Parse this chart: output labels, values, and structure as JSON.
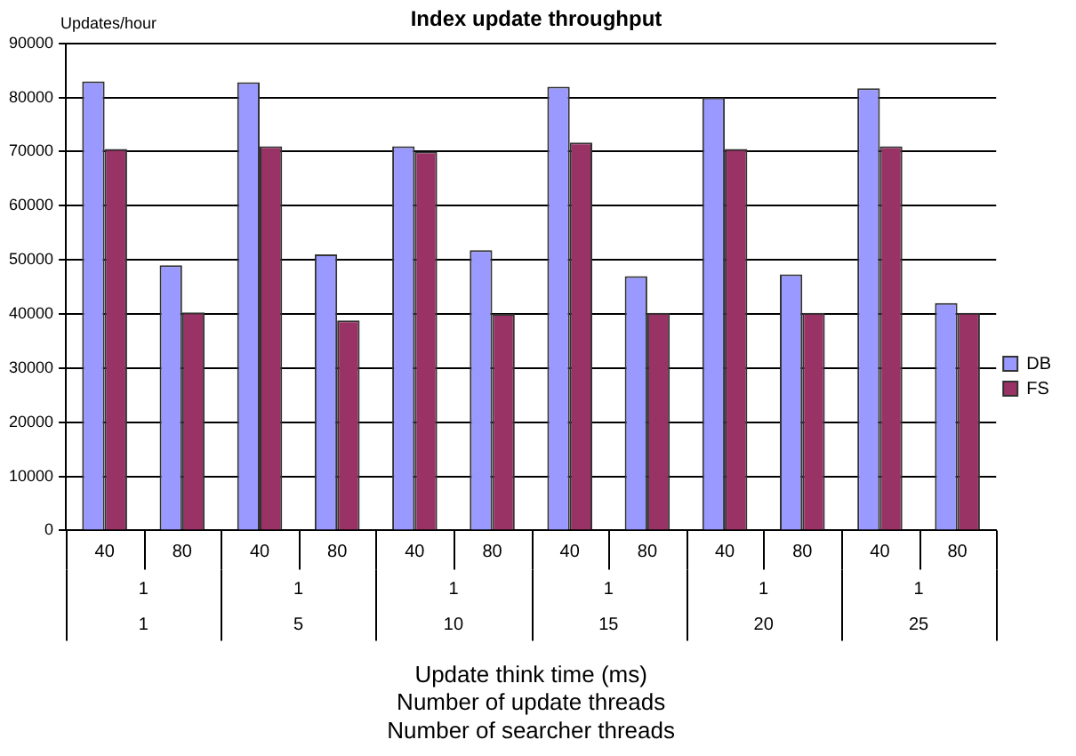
{
  "chart_data": {
    "type": "bar",
    "title": "Index update throughput",
    "ylabel": "Updates/hour",
    "xlabel": "Update think time (ms)\nNumber of update threads\nNumber of searcher threads",
    "categories": [
      "40",
      "80",
      "40",
      "80",
      "40",
      "80",
      "40",
      "80",
      "40",
      "80",
      "40",
      "80"
    ],
    "annotations": [
      "1",
      "1",
      "1",
      "1",
      "1",
      "1",
      "1",
      "5",
      "10",
      "15",
      "20",
      "25"
    ],
    "series": [
      {
        "name": "DB",
        "color": "#9999ff",
        "values": [
          83000,
          49000,
          82800,
          51000,
          71000,
          51800,
          82000,
          47000,
          80000,
          47300,
          81700,
          42000
        ]
      },
      {
        "name": "FS",
        "color": "#993366",
        "values": [
          70500,
          40300,
          71000,
          38800,
          70000,
          40000,
          71700,
          40200,
          70500,
          40200,
          71000,
          40200
        ]
      }
    ],
    "ylim": [
      0,
      90000
    ],
    "yticks": [
      0,
      10000,
      20000,
      30000,
      40000,
      50000,
      60000,
      70000,
      80000,
      90000
    ],
    "grid": "y",
    "legend": "right"
  }
}
